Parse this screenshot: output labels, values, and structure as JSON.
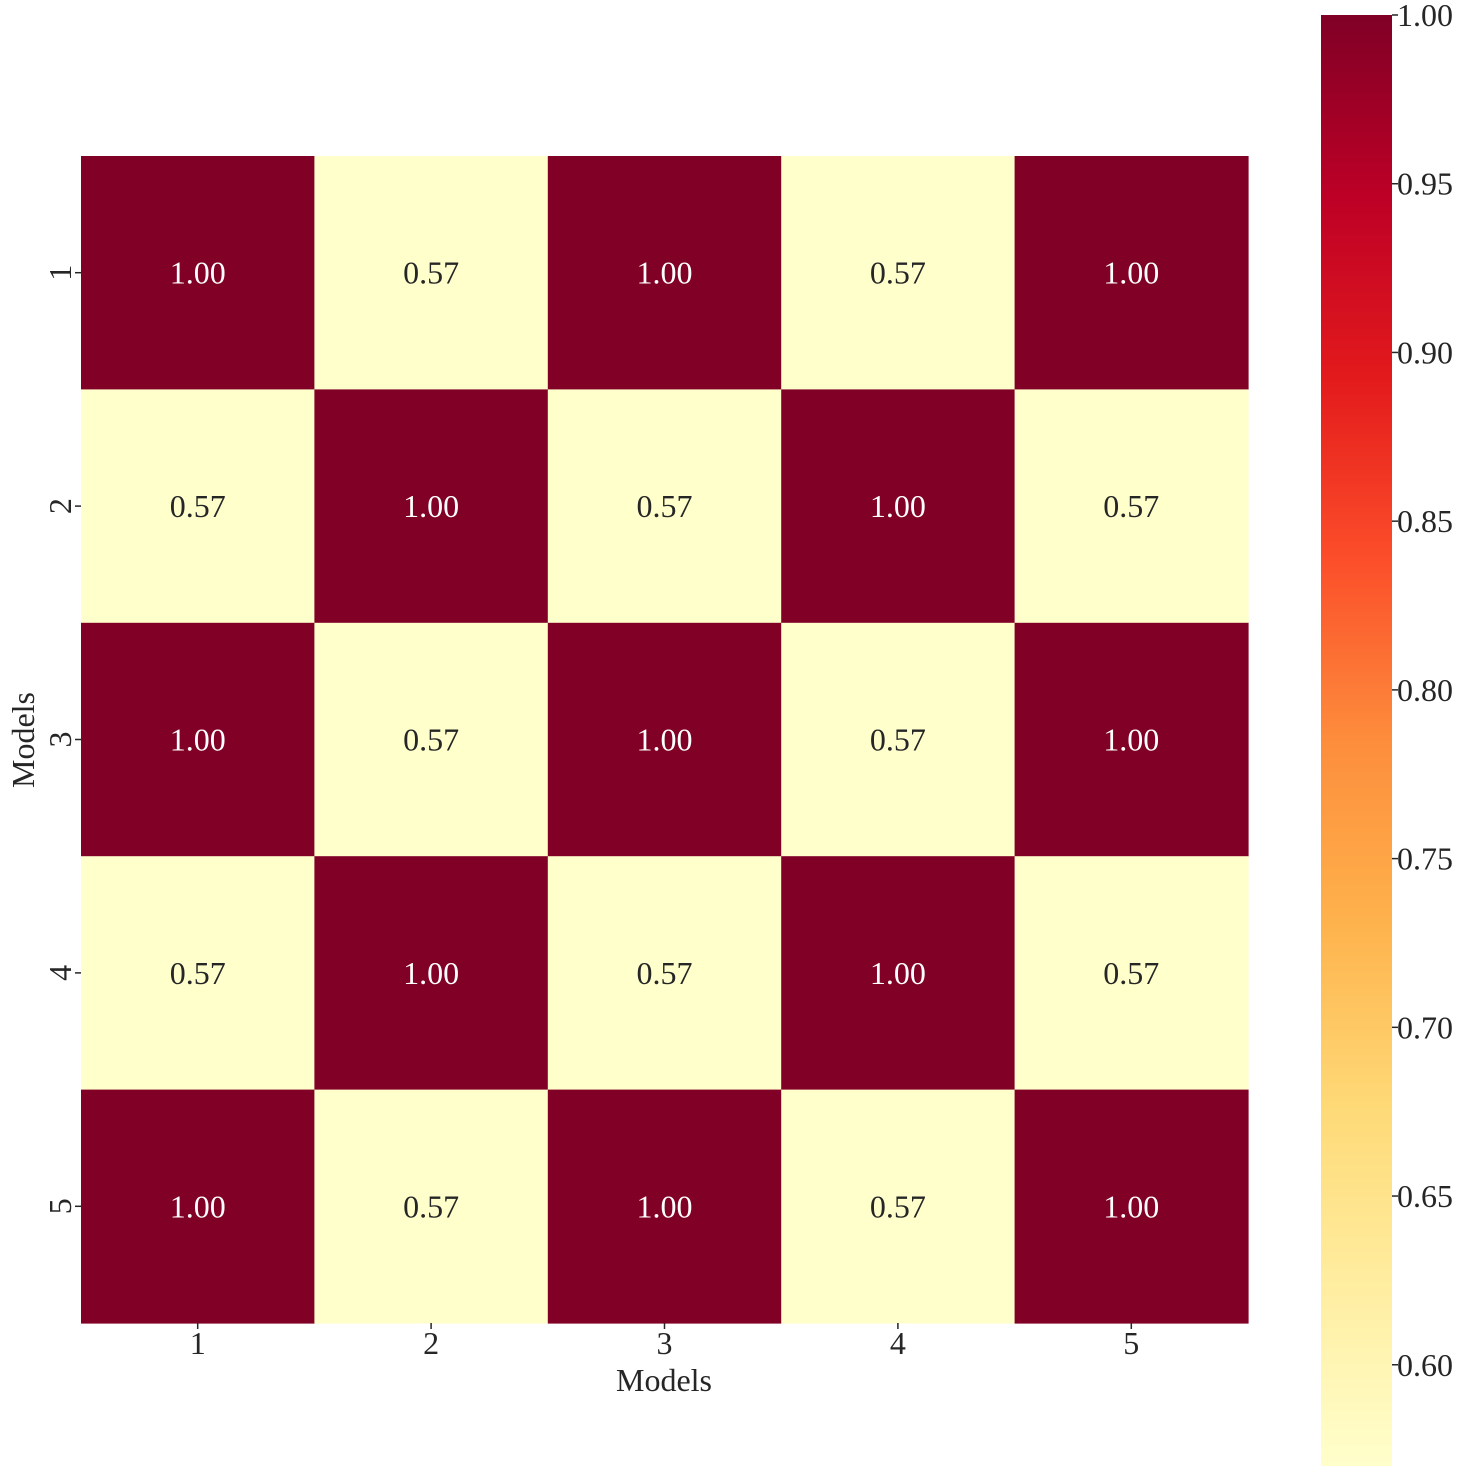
{
  "chart_data": {
    "type": "heatmap",
    "title": "",
    "xlabel": "Models",
    "ylabel": "Models",
    "x_categories": [
      "1",
      "2",
      "3",
      "4",
      "5"
    ],
    "y_categories": [
      "1",
      "2",
      "3",
      "4",
      "5"
    ],
    "values": [
      [
        1.0,
        0.57,
        1.0,
        0.57,
        1.0
      ],
      [
        0.57,
        1.0,
        0.57,
        1.0,
        0.57
      ],
      [
        1.0,
        0.57,
        1.0,
        0.57,
        1.0
      ],
      [
        0.57,
        1.0,
        0.57,
        1.0,
        0.57
      ],
      [
        1.0,
        0.57,
        1.0,
        0.57,
        1.0
      ]
    ],
    "annotations_format": "0.00",
    "colormap": "YlOrRd",
    "colorbar": {
      "vmin": 0.57,
      "vmax": 1.0,
      "ticks": [
        0.6,
        0.65,
        0.7,
        0.75,
        0.8,
        0.85,
        0.9,
        0.95,
        1.0
      ],
      "tick_labels": [
        "0.60",
        "0.65",
        "0.70",
        "0.75",
        "0.80",
        "0.85",
        "0.90",
        "0.95",
        "1.00"
      ],
      "placement": "right"
    },
    "colors": {
      "high": "#800026",
      "low": "#ffffcc",
      "text_on_high": "#ffffff",
      "text_on_low": "#262626"
    },
    "grid": false
  }
}
